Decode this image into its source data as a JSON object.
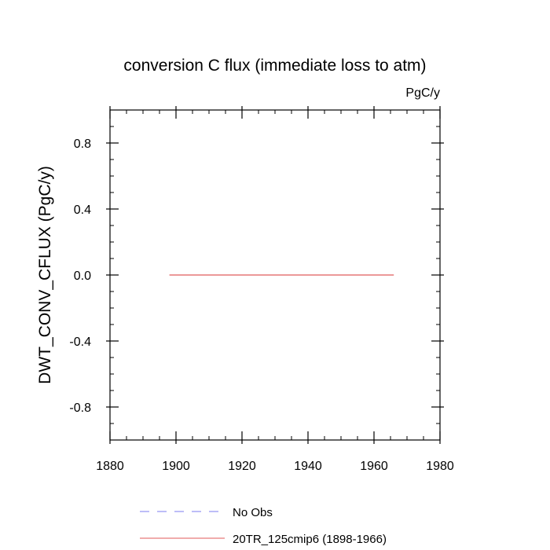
{
  "chart_data": {
    "type": "line",
    "title": "conversion C flux (immediate loss to atm)",
    "units_label": "PgC/y",
    "ylabel": "DWT_CONV_CFLUX  (PgC/y)",
    "xlabel": "",
    "xlim": [
      1880,
      1980
    ],
    "ylim": [
      -1.0,
      1.0
    ],
    "x_ticks": [
      1880,
      1900,
      1920,
      1940,
      1960,
      1980
    ],
    "x_tick_labels": [
      "1880",
      "1900",
      "1920",
      "1940",
      "1960",
      "1980"
    ],
    "y_ticks": [
      -0.8,
      -0.4,
      0.0,
      0.4,
      0.8
    ],
    "y_tick_labels": [
      "-0.8",
      "-0.4",
      "0.0",
      "0.4",
      "0.8"
    ],
    "x_minor_step": 5,
    "y_minor_step": 0.1,
    "grid": false,
    "legend_position": "bottom",
    "series": [
      {
        "name": "No Obs",
        "color": "#7b7bf0",
        "style": "dashed",
        "x": [],
        "values": []
      },
      {
        "name": "20TR_125cmip6 (1898-1966)",
        "color": "#e05a5a",
        "style": "solid",
        "x": [
          1898,
          1966
        ],
        "values": [
          0.0,
          0.0
        ]
      }
    ]
  }
}
